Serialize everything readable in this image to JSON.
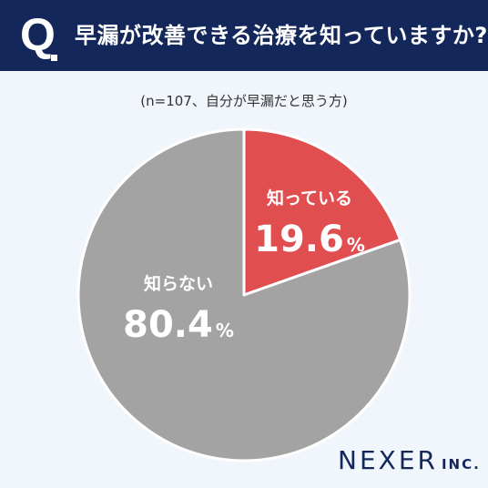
{
  "header": {
    "q_mark": "Q",
    "question": "早漏が改善できる治療を知っていますか?"
  },
  "note": "(n=107、自分が早漏だと思う方)",
  "logo": {
    "main": "NEXER",
    "sub": "INC."
  },
  "chart_data": {
    "type": "pie",
    "unit": "%",
    "slices": [
      {
        "label": "知っている",
        "value": 19.6,
        "color": "#e04e50"
      },
      {
        "label": "知らない",
        "value": 80.4,
        "color": "#a3a3a3"
      }
    ]
  }
}
